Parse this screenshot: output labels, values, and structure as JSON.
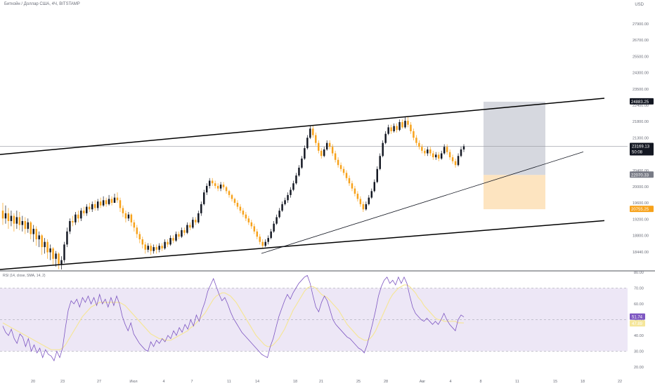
{
  "header": {
    "symbol_title": "Биткойн / Доллар США, 4Ч, BITSTAMP",
    "currency": "USD"
  },
  "rsi": {
    "title": "RSI (14, close, SMA, 14, 2)"
  },
  "colors": {
    "up": "#131722",
    "down": "#f7a21b",
    "rsi_line": "#7e57c2",
    "rsi_ma": "#f5e69a",
    "rsi_band": "#ede7f6",
    "stop_zone": "#d1d4dc",
    "target_zone": "#fde3bd",
    "current_price_line": "#9598a1",
    "price_badge_dark": "#131722",
    "price_badge_target": "#f7a21b",
    "price_badge_stop": "#787b86",
    "rsi_badge": "#7e57c2",
    "rsi_ma_badge": "#f5e69a"
  },
  "chart_data": {
    "type": "candlestick",
    "price_axis": {
      "min": 18440.0,
      "max": 27900.0,
      "ticks": [
        "27900.00",
        "26700.00",
        "25500.00",
        "24300.00",
        "23500.00",
        "22400.00",
        "21800.00",
        "21300.00",
        "20800.00",
        "20400.00",
        "20000.00",
        "19600.00",
        "19200.00",
        "18800.00",
        "18440.00"
      ]
    },
    "date_ticks": [
      "20",
      "23",
      "27",
      "Июл",
      "4",
      "7",
      "11",
      "14",
      "18",
      "21",
      "25",
      "28",
      "Авг",
      "4",
      "8",
      "11",
      "15",
      "18",
      "22"
    ],
    "price_badges": {
      "target": "24883.25",
      "current": "23169.13",
      "countdown": "50:08",
      "entry": "22070.33",
      "stop": "20755.25"
    },
    "channel": {
      "upper": [
        {
          "t": 0,
          "p": 22855
        },
        {
          "t": 860,
          "p": 25016
        }
      ],
      "lower": [
        {
          "t": 0,
          "p": 18440
        },
        {
          "t": 860,
          "p": 20316
        }
      ]
    },
    "trendline": [
      {
        "t": 372,
        "p": 19056
      },
      {
        "t": 830,
        "p": 22958
      }
    ],
    "current_price": 23169.13,
    "position": {
      "t_start": 688,
      "t_end": 776,
      "target": 24883.25,
      "entry": 22070.33,
      "stop": 20755.25
    },
    "ohlc": [
      [
        20700,
        20400,
        21000,
        20150
      ],
      [
        20400,
        20600,
        20900,
        20200
      ],
      [
        20600,
        20300,
        20800,
        20000
      ],
      [
        20300,
        20500,
        20700,
        20100
      ],
      [
        20500,
        20200,
        20600,
        19900
      ],
      [
        20200,
        20450,
        20700,
        20000
      ],
      [
        20450,
        20150,
        20650,
        19950
      ],
      [
        20150,
        20300,
        20500,
        19900
      ],
      [
        20300,
        20000,
        20450,
        19800
      ],
      [
        20000,
        20250,
        20400,
        19850
      ],
      [
        20250,
        19800,
        20300,
        19600
      ],
      [
        19800,
        20000,
        20150,
        19500
      ],
      [
        20000,
        19600,
        20100,
        19350
      ],
      [
        19600,
        19750,
        19900,
        19300
      ],
      [
        19750,
        19300,
        19800,
        19000
      ],
      [
        19300,
        19500,
        19650,
        19050
      ],
      [
        19500,
        19100,
        19600,
        18850
      ],
      [
        19100,
        19250,
        19400,
        18800
      ],
      [
        19250,
        18850,
        19300,
        18600
      ],
      [
        18850,
        19050,
        19150,
        18550
      ],
      [
        19050,
        18650,
        19100,
        18450
      ],
      [
        18650,
        18800,
        18950,
        18440
      ],
      [
        18800,
        19400,
        19500,
        18700
      ],
      [
        19400,
        19900,
        20050,
        19300
      ],
      [
        19900,
        20300,
        20400,
        19800
      ],
      [
        20300,
        20250,
        20500,
        20100
      ],
      [
        20250,
        20550,
        20650,
        20150
      ],
      [
        20550,
        20400,
        20700,
        20250
      ],
      [
        20400,
        20700,
        20800,
        20300
      ],
      [
        20700,
        20600,
        20850,
        20500
      ],
      [
        20600,
        20850,
        20950,
        20500
      ],
      [
        20850,
        20750,
        21000,
        20650
      ],
      [
        20750,
        20950,
        21050,
        20650
      ],
      [
        20950,
        20800,
        21100,
        20700
      ],
      [
        20800,
        21050,
        21150,
        20700
      ],
      [
        21050,
        20900,
        21200,
        20800
      ],
      [
        20900,
        21100,
        21250,
        20850
      ],
      [
        21100,
        20950,
        21200,
        20850
      ],
      [
        20950,
        21150,
        21300,
        20900
      ],
      [
        21150,
        21000,
        21250,
        20900
      ],
      [
        21000,
        21200,
        21350,
        21000
      ],
      [
        21200,
        21100,
        21400,
        21000
      ],
      [
        21100,
        20800,
        21200,
        20650
      ],
      [
        20800,
        20600,
        20900,
        20450
      ],
      [
        20600,
        20400,
        20700,
        20250
      ],
      [
        20400,
        20550,
        20650,
        20300
      ],
      [
        20550,
        20250,
        20600,
        20100
      ],
      [
        20250,
        20050,
        20350,
        19900
      ],
      [
        20050,
        19800,
        20150,
        19650
      ],
      [
        19800,
        19600,
        19900,
        19450
      ],
      [
        19600,
        19400,
        19700,
        19250
      ],
      [
        19400,
        19200,
        19500,
        19050
      ],
      [
        19200,
        19350,
        19450,
        19100
      ],
      [
        19350,
        19150,
        19450,
        19000
      ],
      [
        19150,
        19300,
        19400,
        19050
      ],
      [
        19300,
        19200,
        19400,
        19050
      ],
      [
        19200,
        19350,
        19450,
        19100
      ],
      [
        19350,
        19250,
        19450,
        19150
      ],
      [
        19250,
        19500,
        19600,
        19200
      ],
      [
        19500,
        19400,
        19600,
        19300
      ],
      [
        19400,
        19650,
        19750,
        19350
      ],
      [
        19650,
        19550,
        19750,
        19450
      ],
      [
        19550,
        19800,
        19900,
        19500
      ],
      [
        19800,
        19700,
        19900,
        19600
      ],
      [
        19700,
        19950,
        20050,
        19650
      ],
      [
        19950,
        19850,
        20050,
        19750
      ],
      [
        19850,
        20150,
        20250,
        19800
      ],
      [
        20150,
        20050,
        20250,
        19950
      ],
      [
        20050,
        20350,
        20450,
        20000
      ],
      [
        20350,
        20250,
        20450,
        20150
      ],
      [
        20250,
        20600,
        20700,
        20200
      ],
      [
        20600,
        20950,
        21050,
        20500
      ],
      [
        20950,
        21400,
        21500,
        20900
      ],
      [
        21400,
        21650,
        21750,
        21300
      ],
      [
        21650,
        21850,
        21950,
        21550
      ],
      [
        21850,
        21750,
        21950,
        21650
      ],
      [
        21750,
        21650,
        21850,
        21550
      ],
      [
        21650,
        21550,
        21750,
        21450
      ],
      [
        21550,
        21700,
        21800,
        21450
      ],
      [
        21700,
        21600,
        21800,
        21500
      ],
      [
        21600,
        21450,
        21650,
        21350
      ],
      [
        21450,
        21300,
        21500,
        21200
      ],
      [
        21300,
        21150,
        21350,
        21050
      ],
      [
        21150,
        21000,
        21200,
        20900
      ],
      [
        21000,
        20850,
        21100,
        20750
      ],
      [
        20850,
        20700,
        20950,
        20600
      ],
      [
        20700,
        20550,
        20800,
        20450
      ],
      [
        20550,
        20400,
        20650,
        20300
      ],
      [
        20400,
        20250,
        20500,
        20150
      ],
      [
        20250,
        20100,
        20350,
        20000
      ],
      [
        20100,
        19900,
        20200,
        19800
      ],
      [
        19900,
        19700,
        20000,
        19600
      ],
      [
        19700,
        19500,
        19800,
        19400
      ],
      [
        19500,
        19350,
        19600,
        19250
      ],
      [
        19350,
        19500,
        19600,
        19300
      ],
      [
        19500,
        19650,
        19750,
        19400
      ],
      [
        19650,
        19900,
        20000,
        19600
      ],
      [
        19900,
        20200,
        20300,
        19850
      ],
      [
        20200,
        20450,
        20550,
        20150
      ],
      [
        20450,
        20700,
        20800,
        20400
      ],
      [
        20700,
        20950,
        21050,
        20650
      ],
      [
        20950,
        21100,
        21200,
        20900
      ],
      [
        21100,
        21300,
        21400,
        21000
      ],
      [
        21300,
        21500,
        21600,
        21200
      ],
      [
        21500,
        21750,
        21850,
        21450
      ],
      [
        21750,
        22050,
        22150,
        21700
      ],
      [
        22050,
        22350,
        22450,
        22000
      ],
      [
        22350,
        22700,
        22800,
        22300
      ],
      [
        22700,
        23100,
        23200,
        22650
      ],
      [
        23100,
        23500,
        23600,
        23050
      ],
      [
        23500,
        23850,
        23950,
        23450
      ],
      [
        23850,
        23600,
        23950,
        23500
      ],
      [
        23600,
        23300,
        23700,
        23200
      ],
      [
        23300,
        23000,
        23400,
        22900
      ],
      [
        23000,
        22800,
        23100,
        22700
      ],
      [
        22800,
        23050,
        23150,
        22750
      ],
      [
        23050,
        23300,
        23400,
        23000
      ],
      [
        23300,
        23150,
        23400,
        23050
      ],
      [
        23150,
        22900,
        23250,
        22800
      ],
      [
        22900,
        22650,
        23000,
        22550
      ],
      [
        22650,
        22450,
        22750,
        22350
      ],
      [
        22450,
        22300,
        22550,
        22200
      ],
      [
        22300,
        22150,
        22400,
        22050
      ],
      [
        22150,
        21950,
        22250,
        21850
      ],
      [
        21950,
        21750,
        22050,
        21650
      ],
      [
        21750,
        21550,
        21850,
        21450
      ],
      [
        21550,
        21350,
        21650,
        21250
      ],
      [
        21350,
        21150,
        21450,
        21050
      ],
      [
        21150,
        20950,
        21250,
        20850
      ],
      [
        20950,
        20750,
        21050,
        20650
      ],
      [
        20750,
        20950,
        21050,
        20700
      ],
      [
        20950,
        21200,
        21300,
        20900
      ],
      [
        21200,
        21450,
        21550,
        21150
      ],
      [
        21450,
        21800,
        21900,
        21400
      ],
      [
        21800,
        22300,
        22400,
        21750
      ],
      [
        22300,
        22800,
        22900,
        22250
      ],
      [
        22800,
        23300,
        23400,
        22750
      ],
      [
        23300,
        23650,
        23750,
        23250
      ],
      [
        23650,
        23900,
        24000,
        23600
      ],
      [
        23900,
        23750,
        24000,
        23650
      ],
      [
        23750,
        23950,
        24050,
        23700
      ],
      [
        23950,
        23800,
        24050,
        23700
      ],
      [
        23800,
        24100,
        24200,
        23750
      ],
      [
        24100,
        23900,
        24200,
        23850
      ],
      [
        23900,
        24150,
        24300,
        23850
      ],
      [
        24150,
        24000,
        24300,
        23900
      ],
      [
        24000,
        23750,
        24100,
        23650
      ],
      [
        23750,
        23500,
        23850,
        23400
      ],
      [
        23500,
        23300,
        23600,
        23200
      ],
      [
        23300,
        23150,
        23400,
        23050
      ],
      [
        23150,
        23000,
        23250,
        22900
      ],
      [
        23000,
        22900,
        23100,
        22800
      ],
      [
        22900,
        23050,
        23150,
        22800
      ],
      [
        23050,
        22900,
        23150,
        22800
      ],
      [
        22900,
        22750,
        23000,
        22650
      ],
      [
        22750,
        22850,
        22950,
        22650
      ],
      [
        22850,
        22700,
        22950,
        22600
      ],
      [
        22700,
        22900,
        23000,
        22650
      ],
      [
        22900,
        23150,
        23250,
        22850
      ],
      [
        23150,
        22950,
        23250,
        22850
      ],
      [
        22950,
        22750,
        23050,
        22650
      ],
      [
        22750,
        22600,
        22850,
        22500
      ],
      [
        22600,
        22450,
        22700,
        22350
      ],
      [
        22450,
        22800,
        22900,
        22400
      ],
      [
        22800,
        23050,
        23150,
        22750
      ],
      [
        23050,
        23169.13,
        23250,
        22950
      ]
    ],
    "rsi_axis": {
      "min": 20,
      "max": 80,
      "ticks": [
        "80.00",
        "70.00",
        "60.00",
        "50.00",
        "40.00",
        "30.00",
        "20.00"
      ],
      "upper_band": 70,
      "middle": 50,
      "lower_band": 30
    },
    "rsi_badges": {
      "rsi": "51.74",
      "ma": "47.89"
    },
    "rsi_values": [
      46,
      42,
      40,
      44,
      38,
      35,
      41,
      39,
      33,
      38,
      30,
      34,
      29,
      32,
      26,
      31,
      28,
      27,
      24,
      30,
      26,
      32,
      45,
      56,
      62,
      60,
      63,
      58,
      64,
      61,
      65,
      60,
      64,
      59,
      66,
      60,
      63,
      58,
      64,
      59,
      65,
      60,
      52,
      47,
      43,
      48,
      41,
      38,
      35,
      33,
      31,
      30,
      36,
      33,
      37,
      35,
      38,
      36,
      40,
      38,
      43,
      40,
      45,
      42,
      47,
      44,
      50,
      46,
      53,
      49,
      56,
      61,
      68,
      72,
      76,
      71,
      66,
      62,
      64,
      60,
      55,
      51,
      48,
      45,
      42,
      40,
      38,
      36,
      34,
      32,
      30,
      28,
      27,
      26,
      33,
      38,
      45,
      52,
      57,
      62,
      66,
      63,
      67,
      70,
      73,
      75,
      77,
      78,
      73,
      65,
      58,
      55,
      61,
      65,
      62,
      56,
      50,
      47,
      45,
      43,
      41,
      39,
      38,
      36,
      34,
      32,
      31,
      29,
      34,
      41,
      48,
      56,
      65,
      71,
      75,
      77,
      73,
      75,
      72,
      77,
      73,
      77,
      73,
      65,
      58,
      54,
      52,
      50,
      49,
      51,
      49,
      47,
      49,
      47,
      50,
      54,
      50,
      47,
      45,
      43,
      50,
      53,
      51.74
    ],
    "rsi_ma_values": [
      48,
      47,
      46,
      45,
      44,
      43,
      42,
      41,
      40,
      39,
      38,
      37,
      36,
      35,
      34,
      33,
      32,
      31,
      31,
      31,
      31,
      32,
      34,
      37,
      40,
      43,
      46,
      49,
      52,
      54,
      56,
      58,
      59,
      60,
      61,
      61,
      61,
      61,
      61,
      61,
      61,
      61,
      60,
      59,
      57,
      55,
      53,
      51,
      49,
      47,
      45,
      43,
      41,
      40,
      39,
      38,
      38,
      37,
      37,
      37,
      38,
      39,
      40,
      41,
      42,
      43,
      45,
      46,
      48,
      50,
      52,
      54,
      57,
      60,
      63,
      65,
      66,
      67,
      67,
      66,
      65,
      63,
      61,
      58,
      55,
      52,
      49,
      46,
      43,
      40,
      38,
      36,
      34,
      33,
      33,
      34,
      36,
      38,
      41,
      44,
      48,
      52,
      56,
      59,
      62,
      65,
      68,
      70,
      71,
      71,
      70,
      68,
      66,
      65,
      64,
      62,
      60,
      58,
      56,
      53,
      50,
      47,
      45,
      43,
      41,
      39,
      38,
      37,
      37,
      38,
      40,
      43,
      47,
      51,
      55,
      59,
      63,
      66,
      68,
      70,
      71,
      72,
      72,
      71,
      69,
      67,
      64,
      62,
      59,
      57,
      55,
      53,
      51,
      50,
      50,
      49,
      49,
      49,
      49,
      49,
      48,
      48,
      47.89
    ]
  }
}
